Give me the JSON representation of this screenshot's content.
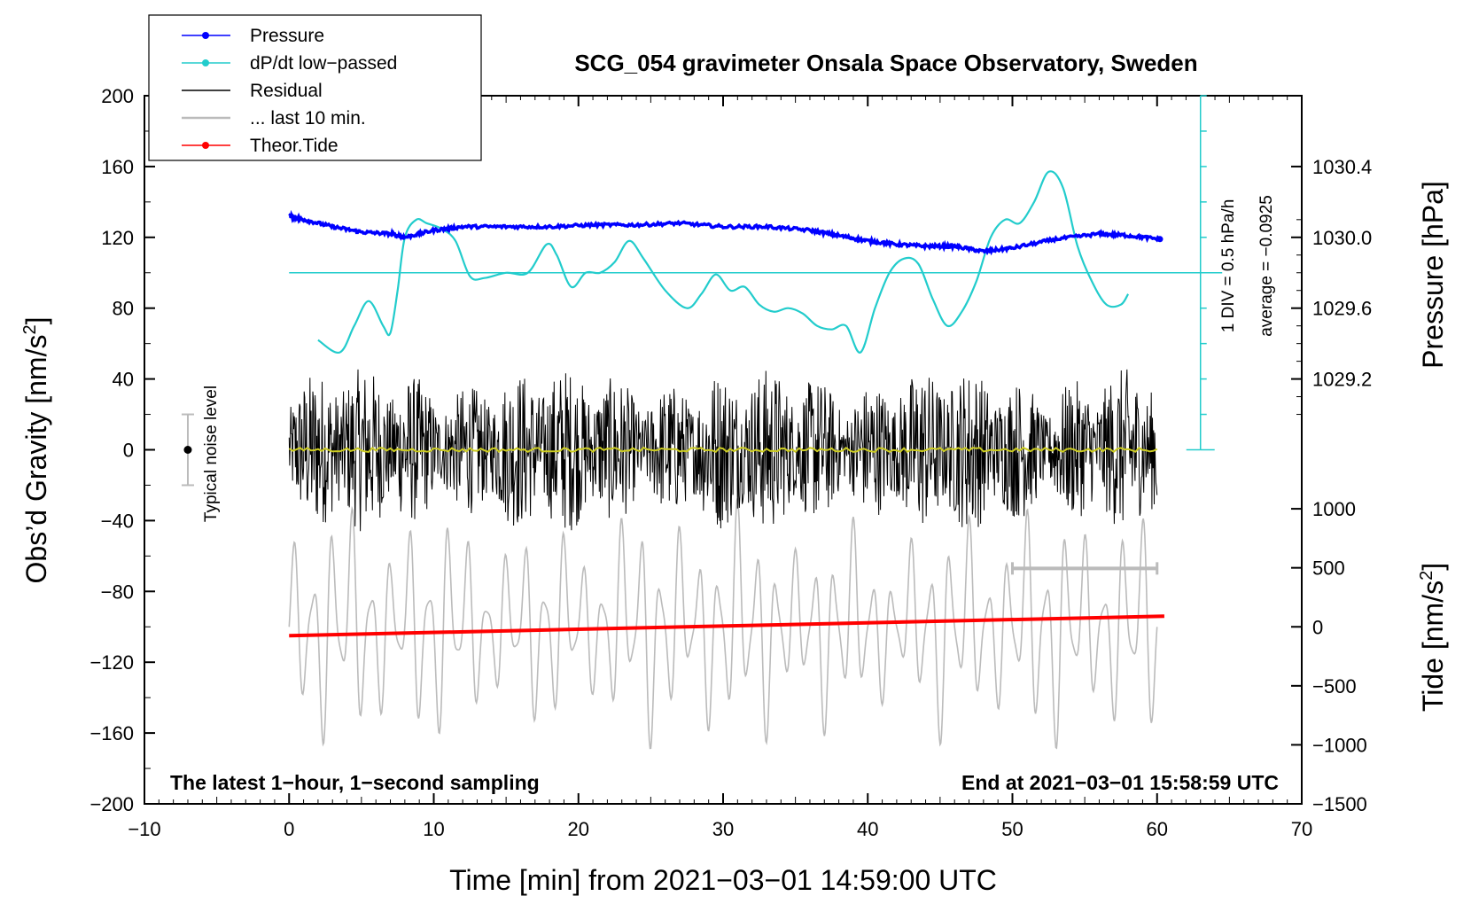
{
  "chart_data": {
    "type": "line",
    "title": "SCG_054 gravimeter Onsala Space Observatory, Sweden",
    "xlabel": "Time [min] from 2021−03−01 14:59:00 UTC",
    "ylabel_main": "Obs’d Gravity [nm/s",
    "ylabel_main_sup": "2",
    "ylabel_main_end": "]",
    "ylabel_pressure": "Pressure [hPa]",
    "ylabel_tide": "Tide [nm/s",
    "ylabel_tide_sup": "2",
    "ylabel_tide_end": "]",
    "xlim": [
      -10,
      70
    ],
    "ylim": [
      -200,
      200
    ],
    "x_ticks": [
      {
        "v": -10,
        "label": "−10"
      },
      {
        "v": 0,
        "label": "0"
      },
      {
        "v": 10,
        "label": "10"
      },
      {
        "v": 20,
        "label": "20"
      },
      {
        "v": 30,
        "label": "30"
      },
      {
        "v": 40,
        "label": "40"
      },
      {
        "v": 50,
        "label": "50"
      },
      {
        "v": 60,
        "label": "60"
      },
      {
        "v": 70,
        "label": "70"
      }
    ],
    "y_ticks": [
      {
        "v": 200,
        "label": "200"
      },
      {
        "v": 160,
        "label": "160"
      },
      {
        "v": 120,
        "label": "120"
      },
      {
        "v": 80,
        "label": "80"
      },
      {
        "v": 40,
        "label": "40"
      },
      {
        "v": 0,
        "label": "0"
      },
      {
        "v": -40,
        "label": "−40"
      },
      {
        "v": -80,
        "label": "−80"
      },
      {
        "v": -120,
        "label": "−120"
      },
      {
        "v": -160,
        "label": "−160"
      },
      {
        "v": -200,
        "label": "−200"
      }
    ],
    "pressure_axis": {
      "ticks": [
        {
          "v": 1030.4,
          "label": "1030.4"
        },
        {
          "v": 1030.0,
          "label": "1030.0"
        },
        {
          "v": 1029.6,
          "label": "1029.6"
        },
        {
          "v": 1029.2,
          "label": "1029.2"
        }
      ],
      "ref_gravity": 120,
      "ref_value": 1030.0,
      "gravity_per_unit": 100
    },
    "tide_axis": {
      "ticks": [
        {
          "v": 1000,
          "label": "1000"
        },
        {
          "v": 500,
          "label": "500"
        },
        {
          "v": 0,
          "label": "0"
        },
        {
          "v": -500,
          "label": "−500"
        },
        {
          "v": -1000,
          "label": "−1000"
        },
        {
          "v": -1500,
          "label": "−1500"
        }
      ],
      "ref_gravity": -100,
      "ref_value": 0,
      "gravity_per_unit": 0.0666667
    },
    "dpdt_scale": {
      "label_div": "1 DIV = 0.5 hPa/h",
      "label_avg": "average = −0.0925",
      "x": 63,
      "range": [
        0,
        200
      ],
      "average_line_y": 100
    },
    "noise_bar": {
      "x": -7,
      "center": 0,
      "half": 20,
      "label": "Typical noise level"
    },
    "scale_bar": {
      "x_start": 50,
      "x_end": 60,
      "y": -67
    },
    "notes": {
      "left": "The latest 1−hour, 1−second sampling",
      "right": "End at 2021−03−01 15:58:59 UTC"
    },
    "series": [
      {
        "name": "Pressure",
        "color": "#0000ff",
        "x": [
          0,
          1,
          3,
          5,
          7,
          8,
          10,
          12,
          15,
          18,
          21,
          24,
          27,
          30,
          33,
          36,
          38,
          40,
          42,
          44,
          46,
          48,
          50,
          53,
          56,
          58,
          60.2
        ],
        "y": [
          132,
          130,
          126,
          123,
          122,
          120,
          124,
          126,
          126,
          126,
          127,
          127,
          128,
          126,
          126,
          124,
          121,
          118,
          116,
          115,
          115,
          112,
          114,
          119,
          122,
          121,
          119
        ]
      },
      {
        "name": "dP/dt low−passed",
        "color": "#22cccc",
        "x": [
          2,
          3.5,
          4.5,
          5.5,
          6.5,
          7,
          7.5,
          8,
          8.8,
          9.5,
          10.5,
          11.5,
          12.5,
          13.5,
          15,
          16.5,
          17.8,
          18.5,
          19.5,
          20.5,
          21.5,
          22.5,
          23.5,
          24.5,
          26,
          27.5,
          28.5,
          29.5,
          30.5,
          31.5,
          32.5,
          33.5,
          34.5,
          35.5,
          36.5,
          37.5,
          38.5,
          39.5,
          40.5,
          41.5,
          42.5,
          43.5,
          44.5,
          45.5,
          46.5,
          47.5,
          48.5,
          49.5,
          50.5,
          51.5,
          52.5,
          53.5,
          54.5,
          55.5,
          56.5,
          57.5,
          58
        ],
        "y": [
          62,
          55,
          70,
          84,
          70,
          66,
          90,
          120,
          130,
          128,
          125,
          118,
          98,
          97,
          100,
          100,
          116,
          110,
          92,
          100,
          100,
          106,
          118,
          108,
          90,
          80,
          88,
          99,
          90,
          92,
          82,
          78,
          80,
          77,
          70,
          68,
          70,
          55,
          80,
          100,
          108,
          105,
          85,
          70,
          78,
          95,
          120,
          130,
          128,
          140,
          157,
          148,
          115,
          95,
          82,
          82,
          88
        ]
      },
      {
        "name": "Residual",
        "color": "#000000",
        "x_range": [
          0,
          60
        ],
        "amplitude": 45
      },
      {
        "name": "... last 10 min.",
        "color": "#bbbbbb",
        "x_range": [
          0,
          60
        ],
        "offset": -100,
        "amplitude": 60
      },
      {
        "name": "Residual mean",
        "color": "#cccc22",
        "x_range": [
          0,
          60
        ],
        "value": 0
      },
      {
        "name": "Theor.Tide",
        "color": "#ff0000",
        "x": [
          0,
          60.5
        ],
        "y": [
          -105,
          -94
        ]
      }
    ],
    "legend": [
      {
        "label": "Pressure",
        "color": "#0000ff",
        "marker": true
      },
      {
        "label": "dP/dt low−passed",
        "color": "#22cccc",
        "marker": true
      },
      {
        "label": "Residual",
        "color": "#000000",
        "marker": false
      },
      {
        "label": "... last 10 min.",
        "color": "#bbbbbb",
        "marker": false
      },
      {
        "label": "Theor.Tide",
        "color": "#ff0000",
        "marker": true
      }
    ]
  }
}
